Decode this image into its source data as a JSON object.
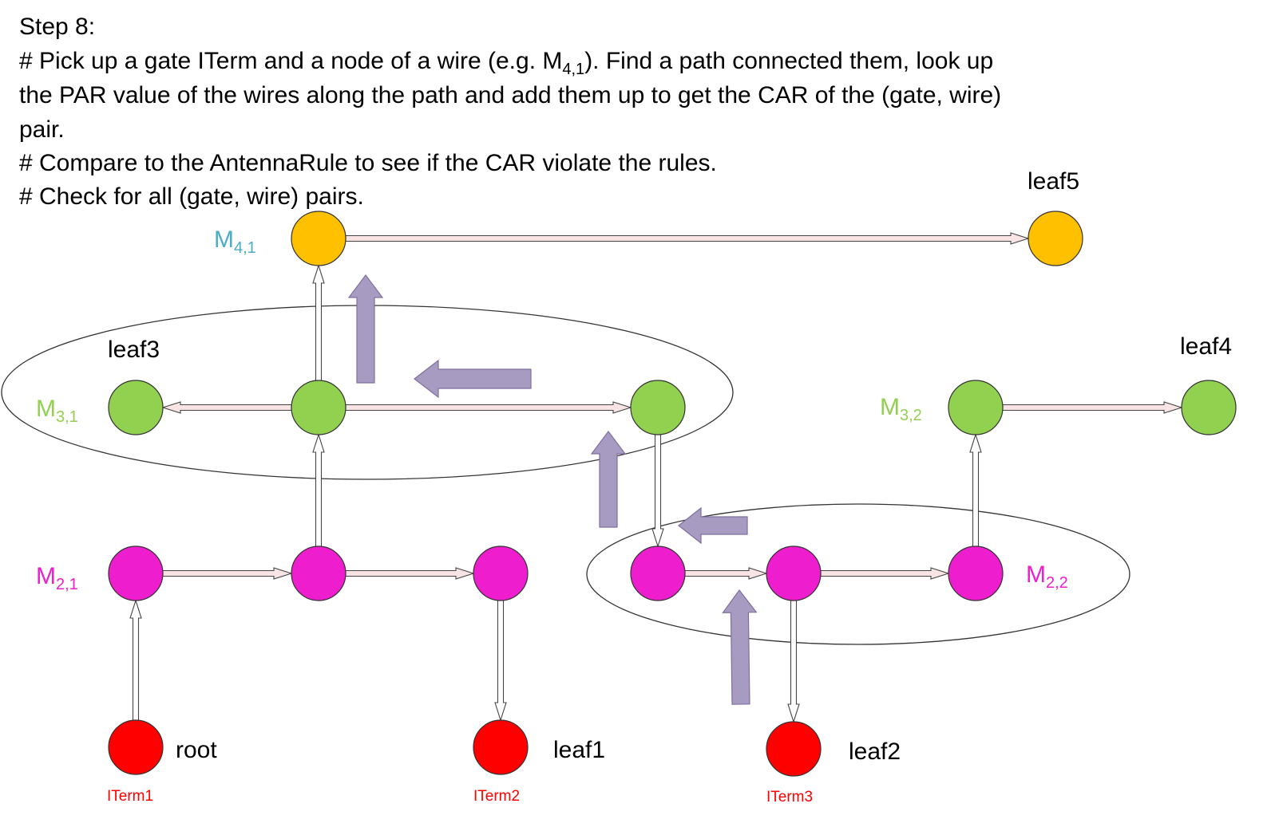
{
  "instructions": {
    "step": "Step 8:",
    "line1": "# Pick up a gate ITerm and a node of a wire (e.g. M",
    "line1_sub": "4,1",
    "line1_end": "). Find a path connected them, look up",
    "line2": "the PAR value of the wires along the path and add them up to get the CAR of the (gate, wire)",
    "line3": "pair.",
    "line4": "# Compare to the AntennaRule to see if the CAR violate the rules.",
    "line5": "# Check for all (gate, wire) pairs."
  },
  "metal_labels": {
    "m41": {
      "base": "M",
      "sub": "4,1"
    },
    "m31": {
      "base": "M",
      "sub": "3,1"
    },
    "m32": {
      "base": "M",
      "sub": "3,2"
    },
    "m21": {
      "base": "M",
      "sub": "2,1"
    },
    "m22": {
      "base": "M",
      "sub": "2,2"
    }
  },
  "leaf_labels": {
    "root": "root",
    "leaf1": "leaf1",
    "leaf2": "leaf2",
    "leaf3": "leaf3",
    "leaf4": "leaf4",
    "leaf5": "leaf5"
  },
  "iterm_labels": {
    "iterm1": "ITerm1",
    "iterm2": "ITerm2",
    "iterm3": "ITerm3"
  },
  "colors": {
    "m4": "#FFC000",
    "m3": "#92D050",
    "m2": "#EE1ECE",
    "iterm": "#FF0000",
    "m4_label": "#4BACC6",
    "m3_label": "#92D050",
    "m2_label": "#EE1ECE",
    "iterm_label": "#FF0000",
    "wire_fill": "#F8E4E4",
    "via_fill": "#FFFFFF",
    "path_arrow": "#A89BC2",
    "path_arrow_stroke": "#7F6F9F"
  }
}
